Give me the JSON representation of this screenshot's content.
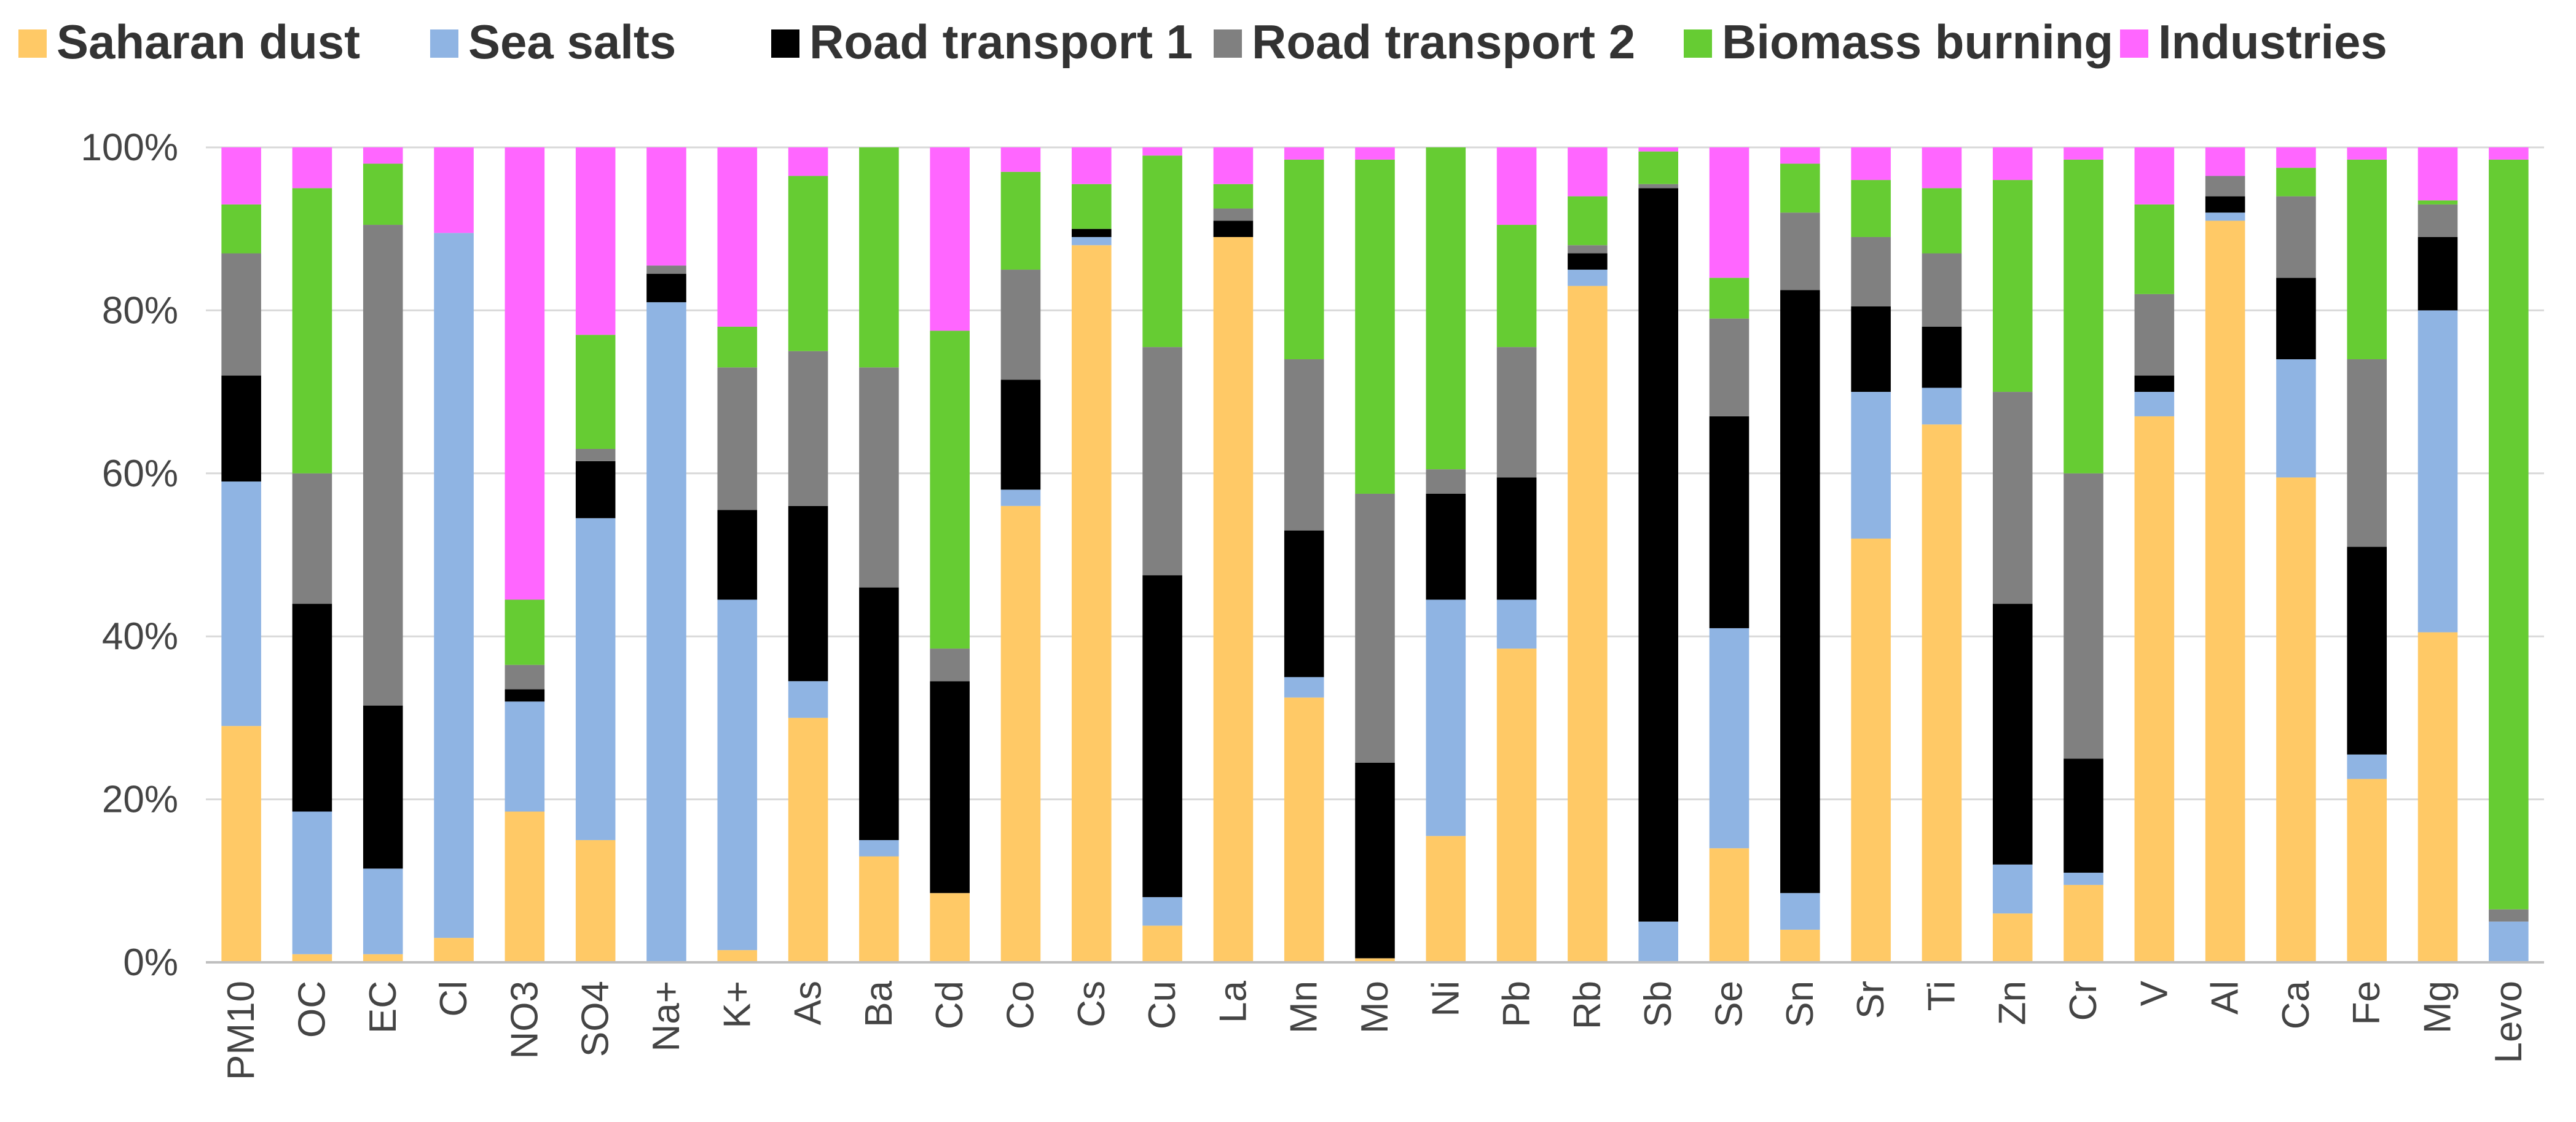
{
  "chart_data": {
    "type": "bar",
    "stacked": true,
    "percent": true,
    "title": "",
    "xlabel": "",
    "ylabel": "",
    "ylim": [
      0,
      100
    ],
    "yticks": [
      "0%",
      "20%",
      "40%",
      "60%",
      "80%",
      "100%"
    ],
    "legend_position": "top",
    "grid": true,
    "categories": [
      "PM10",
      "OC",
      "EC",
      "Cl",
      "NO3",
      "SO4",
      "Na+",
      "K+",
      "As",
      "Ba",
      "Cd",
      "Co",
      "Cs",
      "Cu",
      "La",
      "Mn",
      "Mo",
      "Ni",
      "Pb",
      "Rb",
      "Sb",
      "Se",
      "Sn",
      "Sr",
      "Ti",
      "Zn",
      "Cr",
      "V",
      "Al",
      "Ca",
      "Fe",
      "Mg",
      "Levo"
    ],
    "series": [
      {
        "name": "Saharan dust",
        "color": "#FFC966",
        "values": [
          29,
          1,
          1,
          3,
          18.5,
          15,
          0,
          1.5,
          30,
          13,
          8.5,
          56,
          88,
          4.5,
          89,
          32.5,
          0.5,
          15.5,
          38.5,
          83,
          0,
          14,
          4,
          52,
          66,
          6,
          9.5,
          67,
          91,
          59.5,
          22.5,
          40.5,
          0
        ]
      },
      {
        "name": "Sea salts",
        "color": "#8FB4E3",
        "values": [
          30,
          17.5,
          10.5,
          86.5,
          13.5,
          39.5,
          81,
          43,
          4.5,
          2,
          0,
          2,
          1,
          3.5,
          0,
          2.5,
          0,
          29,
          6,
          2,
          5,
          27,
          4.5,
          18,
          4.5,
          6,
          1.5,
          3,
          1,
          14.5,
          3,
          39.5,
          5
        ]
      },
      {
        "name": "Road transport 1",
        "color": "#000000",
        "values": [
          13,
          25.5,
          20,
          0,
          1.5,
          7,
          3.5,
          11,
          21.5,
          31,
          26,
          13.5,
          1,
          39.5,
          2,
          18,
          24,
          13,
          15,
          2,
          90,
          26,
          74,
          10.5,
          7.5,
          32,
          14,
          2,
          2,
          10,
          25.5,
          9,
          0
        ]
      },
      {
        "name": "Road transport 2",
        "color": "#808080",
        "values": [
          15,
          16,
          59,
          0,
          3,
          1.5,
          1,
          17.5,
          19,
          27,
          4,
          13.5,
          0,
          28,
          1.5,
          21,
          33,
          3,
          16,
          1,
          0.5,
          12,
          9.5,
          8.5,
          9,
          26,
          35,
          10,
          2.5,
          10,
          23,
          4,
          1.5
        ]
      },
      {
        "name": "Biomass burning",
        "color": "#66CC33",
        "values": [
          6,
          35,
          7.5,
          0,
          8,
          14,
          0,
          5,
          21.5,
          27,
          39,
          12,
          5.5,
          23.5,
          3,
          24.5,
          41,
          39.5,
          15,
          6,
          4,
          5,
          6,
          7,
          8,
          26,
          38.5,
          11,
          0,
          3.5,
          24.5,
          0.5,
          92
        ]
      },
      {
        "name": "Industries",
        "color": "#FF66FF",
        "values": [
          7,
          5,
          2,
          10.5,
          55.5,
          23,
          14.5,
          22,
          3.5,
          0,
          22.5,
          3,
          4.5,
          1,
          4.5,
          1.5,
          1.5,
          0,
          9.5,
          6,
          0.5,
          16,
          2,
          4,
          5,
          4,
          1.5,
          7,
          3.5,
          2.5,
          1.5,
          6.5,
          1.5
        ]
      }
    ]
  }
}
